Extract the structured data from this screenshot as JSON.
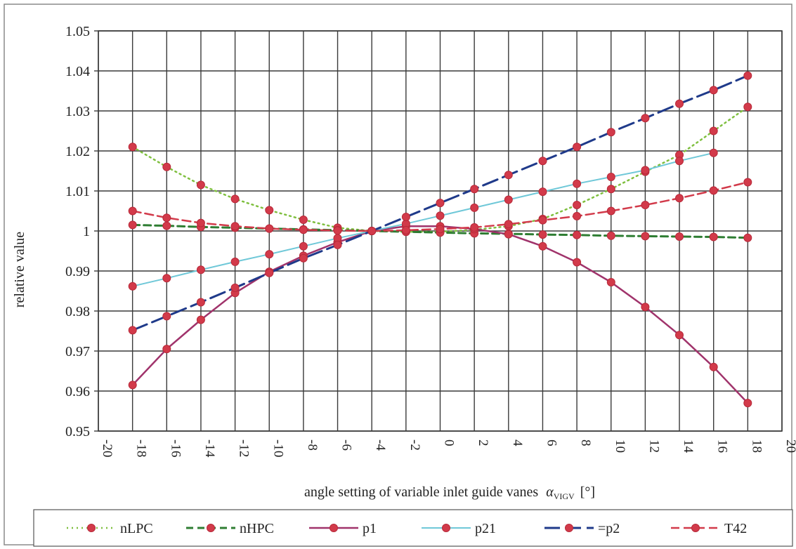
{
  "chart_data": {
    "type": "line",
    "title": "",
    "xlabel": "angle setting of variable inlet guide vanes",
    "xlabel_symbol": "α",
    "xlabel_subscript": "VIGV",
    "xlabel_unit": "[°]",
    "ylabel": "relative value",
    "xlim": [
      -20,
      20
    ],
    "ylim": [
      0.95,
      1.05
    ],
    "grid": true,
    "legend_position": "bottom",
    "xticks": [
      -20,
      -18,
      -16,
      -14,
      -12,
      -10,
      -8,
      -6,
      -4,
      -2,
      0,
      2,
      4,
      6,
      8,
      10,
      12,
      14,
      16,
      18,
      20
    ],
    "xtick_labels": [
      "-20",
      "-18",
      "-16",
      "-14",
      "-12",
      "-10",
      "-8",
      "-6",
      "-4",
      "-2",
      "0",
      "2",
      "4",
      "6",
      "8",
      "10",
      "12",
      "14",
      "16",
      "18",
      "20"
    ],
    "yticks": [
      0.95,
      0.96,
      0.97,
      0.98,
      0.99,
      1.0,
      1.01,
      1.02,
      1.03,
      1.04,
      1.05
    ],
    "ytick_labels": [
      "0.95",
      "0.96",
      "0.97",
      "0.98",
      "0.99",
      "1",
      "1.01",
      "1.02",
      "1.03",
      "1.04",
      "1.05"
    ],
    "x": [
      -18,
      -16,
      -14,
      -12,
      -10,
      -8,
      -6,
      -4,
      -2,
      0,
      2,
      4,
      6,
      8,
      10,
      12,
      14,
      16,
      18
    ],
    "series": [
      {
        "name": "nLPC",
        "color": "#7fbf3f",
        "dash": "2,5",
        "width": 2.5,
        "x": [
          -18,
          -16,
          -14,
          -12,
          -10,
          -8,
          -6,
          -4,
          -2,
          0,
          2,
          4,
          6,
          8,
          10,
          12,
          14,
          16,
          18
        ],
        "values": [
          1.021,
          1.016,
          1.0115,
          1.008,
          1.0052,
          1.0028,
          1.0008,
          1.0,
          0.9998,
          0.9998,
          1.0003,
          1.0012,
          1.003,
          1.0065,
          1.0105,
          1.0148,
          1.019,
          1.025,
          1.031
        ]
      },
      {
        "name": "nHPC",
        "color": "#2e7d32",
        "dash": "10,6",
        "width": 3,
        "x": [
          -18,
          -16,
          -14,
          -12,
          -10,
          -8,
          -6,
          -4,
          -2,
          0,
          2,
          4,
          6,
          8,
          10,
          12,
          14,
          16,
          18
        ],
        "values": [
          1.0015,
          1.0013,
          1.001,
          1.0008,
          1.0006,
          1.0004,
          1.0002,
          1.0,
          0.9998,
          0.9996,
          0.9994,
          0.9993,
          0.9991,
          0.999,
          0.9988,
          0.9987,
          0.9986,
          0.9985,
          0.9983
        ]
      },
      {
        "name": "p1",
        "color": "#a0336b",
        "dash": "",
        "width": 2.5,
        "x": [
          -18,
          -16,
          -14,
          -12,
          -10,
          -8,
          -6,
          -4,
          -2,
          0,
          2,
          4,
          6,
          8,
          10,
          12,
          14,
          16,
          18
        ],
        "values": [
          0.9615,
          0.9705,
          0.9778,
          0.9845,
          0.9898,
          0.9938,
          0.9972,
          1.0,
          1.0012,
          1.0012,
          1.0005,
          0.9992,
          0.9962,
          0.9922,
          0.9872,
          0.981,
          0.974,
          0.966,
          0.957
        ]
      },
      {
        "name": "p21",
        "color": "#6fc8d8",
        "dash": "",
        "width": 2,
        "x": [
          -18,
          -16,
          -14,
          -12,
          -10,
          -8,
          -6,
          -4,
          -2,
          0,
          2,
          4,
          6,
          8,
          10,
          12,
          14,
          16
        ],
        "values": [
          0.9862,
          0.9882,
          0.9903,
          0.9923,
          0.9942,
          0.9962,
          0.9982,
          1.0,
          1.0018,
          1.0038,
          1.0058,
          1.0078,
          1.0098,
          1.0118,
          1.0135,
          1.0152,
          1.0175,
          1.0195
        ]
      },
      {
        "name": "p2",
        "color": "#1f3a8a",
        "dash": "22,8",
        "width": 3,
        "x": [
          -18,
          -16,
          -14,
          -12,
          -10,
          -8,
          -6,
          -4,
          -2,
          0,
          2,
          4,
          6,
          8,
          10,
          12,
          14,
          16,
          18
        ],
        "values": [
          0.9752,
          0.9787,
          0.9822,
          0.9858,
          0.9895,
          0.9932,
          0.9965,
          1.0,
          1.0035,
          1.007,
          1.0105,
          1.014,
          1.0175,
          1.021,
          1.0247,
          1.0282,
          1.0318,
          1.0352,
          1.0388
        ]
      },
      {
        "name": "T42",
        "color": "#d23a4a",
        "dash": "12,6",
        "width": 2.5,
        "x": [
          -18,
          -16,
          -14,
          -12,
          -10,
          -8,
          -6,
          -4,
          -2,
          0,
          2,
          4,
          6,
          8,
          10,
          12,
          14,
          16,
          18
        ],
        "values": [
          1.005,
          1.0033,
          1.002,
          1.0012,
          1.0006,
          1.0003,
          1.0001,
          1.0,
          1.0002,
          1.0005,
          1.0009,
          1.0017,
          1.0027,
          1.0037,
          1.005,
          1.0065,
          1.0082,
          1.0101,
          1.0122
        ]
      }
    ],
    "legend": [
      {
        "label": "nLPC",
        "series": "nLPC"
      },
      {
        "label": "nHPC",
        "series": "nHPC"
      },
      {
        "label": "p1",
        "series": "p1"
      },
      {
        "label": "p21",
        "series": "p21"
      },
      {
        "label": "=p2",
        "series": "p2"
      },
      {
        "label": "T42",
        "series": "T42"
      }
    ],
    "marker_color": "#d23a4a"
  }
}
